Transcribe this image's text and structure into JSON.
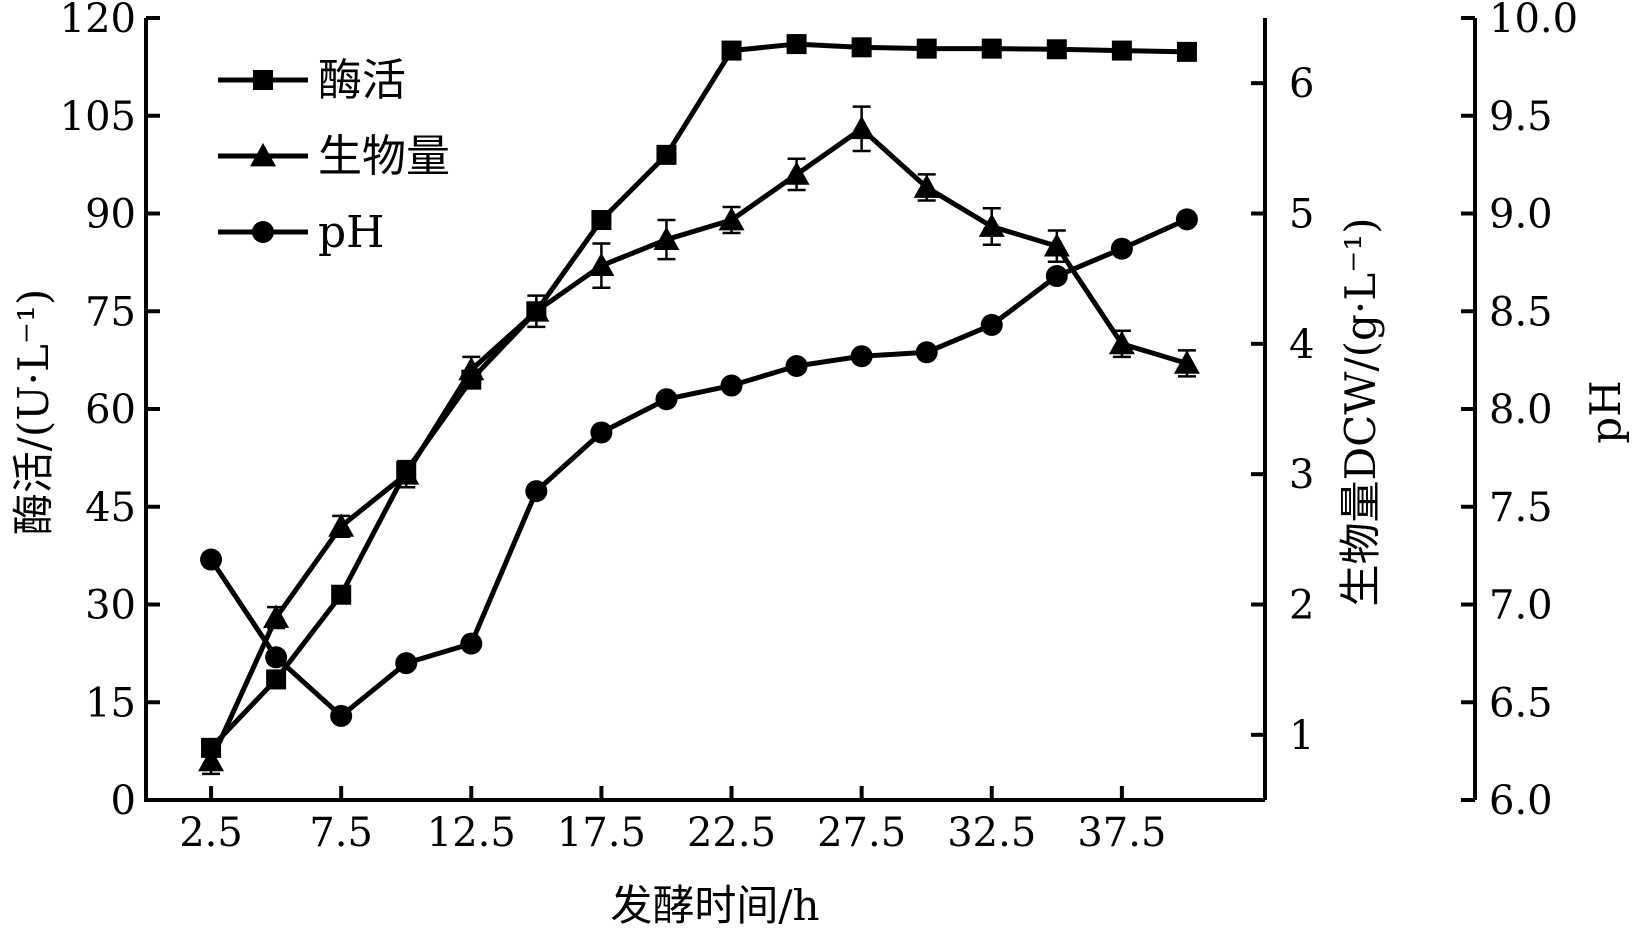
{
  "chart_data": {
    "type": "line",
    "title": "",
    "xlabel": "发酵时间/h",
    "x": [
      2.5,
      5,
      7.5,
      10,
      12.5,
      15,
      17.5,
      20,
      22.5,
      25,
      27.5,
      30,
      32.5,
      35,
      37.5,
      40
    ],
    "x_ticks": [
      2.5,
      7.5,
      12.5,
      17.5,
      22.5,
      27.5,
      32.5,
      37.5
    ],
    "x_tick_labels": [
      "2.5",
      "7.5",
      "12.5",
      "17.5",
      "22.5",
      "27.5",
      "32.5",
      "37.5"
    ],
    "axes": {
      "left": {
        "label": "酶活/(U·L⁻¹)",
        "range": [
          0,
          120
        ],
        "ticks": [
          0,
          15,
          30,
          45,
          60,
          75,
          90,
          105,
          120
        ],
        "tick_labels": [
          "0",
          "15",
          "30",
          "45",
          "60",
          "75",
          "90",
          "105",
          "120"
        ]
      },
      "right1": {
        "label": "生物量DCW/(g·L⁻¹)",
        "range": [
          0.5,
          6.5
        ],
        "ticks": [
          1,
          2,
          3,
          4,
          5,
          6
        ],
        "tick_labels": [
          "1",
          "2",
          "3",
          "4",
          "5",
          "6"
        ]
      },
      "right2": {
        "label": "pH",
        "range": [
          6.0,
          10.0
        ],
        "ticks": [
          6.0,
          6.5,
          7.0,
          7.5,
          8.0,
          8.5,
          9.0,
          9.5,
          10.0
        ],
        "tick_labels": [
          "6.0",
          "6.5",
          "7.0",
          "7.5",
          "8.0",
          "8.5",
          "9.0",
          "9.5",
          "10.0"
        ]
      }
    },
    "series": [
      {
        "name": "酶活",
        "axis": "left",
        "marker": "square",
        "values": [
          8,
          18.5,
          31.5,
          50.5,
          64.5,
          75,
          89,
          99,
          115,
          116,
          115.5,
          115.3,
          115.3,
          115.2,
          115,
          114.8
        ]
      },
      {
        "name": "生物量",
        "axis": "right1",
        "marker": "triangle",
        "values": [
          0.8,
          1.9,
          2.6,
          3.0,
          3.8,
          4.25,
          4.6,
          4.8,
          4.95,
          5.3,
          5.65,
          5.2,
          4.9,
          4.75,
          4.0,
          3.85
        ],
        "errors": [
          0.1,
          0.08,
          0.08,
          0.1,
          0.1,
          0.12,
          0.17,
          0.15,
          0.1,
          0.12,
          0.17,
          0.1,
          0.14,
          0.12,
          0.1,
          0.1
        ]
      },
      {
        "name": "pH",
        "axis": "right2",
        "marker": "circle",
        "values": [
          7.23,
          6.73,
          6.43,
          6.7,
          6.8,
          7.58,
          7.88,
          8.05,
          8.12,
          8.22,
          8.27,
          8.29,
          8.43,
          8.68,
          8.82,
          8.97
        ]
      }
    ],
    "legend": {
      "position": "top-left",
      "entries": [
        "酶活",
        "生物量",
        "pH"
      ]
    },
    "grid": false
  }
}
